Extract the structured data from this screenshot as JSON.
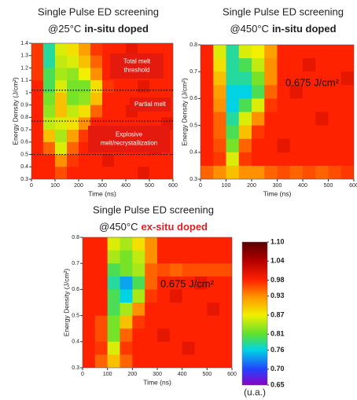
{
  "chart_data": [
    {
      "type": "heatmap",
      "title": "Single Pulse ED screening",
      "subtitle": "@25°C",
      "subtitle_emphasis": "in-situ doped",
      "xlabel": "Time (ns)",
      "ylabel": "Energy Density (J/cm²)",
      "xlim": [
        0,
        600
      ],
      "xticks": [
        0,
        100,
        200,
        300,
        400,
        500,
        600
      ],
      "ylim": [
        0.3,
        1.4
      ],
      "yticks": [
        0.3,
        0.4,
        0.5,
        0.6,
        0.7,
        0.8,
        0.9,
        1,
        1.1,
        1.2,
        1.3,
        1.4
      ],
      "x": [
        25,
        75,
        125,
        175,
        225,
        275,
        325,
        375,
        425,
        475,
        525,
        575
      ],
      "y": [
        1.35,
        1.25,
        1.15,
        1.05,
        0.95,
        0.85,
        0.75,
        0.65,
        0.55,
        0.45,
        0.35
      ],
      "values": [
        [
          0.97,
          0.78,
          0.86,
          0.88,
          0.92,
          0.97,
          0.98,
          0.98,
          1.0,
          0.98,
          0.98,
          0.98
        ],
        [
          0.97,
          0.78,
          0.85,
          0.86,
          0.9,
          0.95,
          0.98,
          0.98,
          0.98,
          0.98,
          1.0,
          0.98
        ],
        [
          0.97,
          0.8,
          0.84,
          0.83,
          0.87,
          0.93,
          0.98,
          0.98,
          0.98,
          0.98,
          0.98,
          0.98
        ],
        [
          0.98,
          0.8,
          0.86,
          0.82,
          0.82,
          0.88,
          0.97,
          0.98,
          0.98,
          1.0,
          0.98,
          0.98
        ],
        [
          0.98,
          0.82,
          0.9,
          0.82,
          0.83,
          0.9,
          0.98,
          0.98,
          0.98,
          0.98,
          0.98,
          0.98
        ],
        [
          0.98,
          0.83,
          0.9,
          0.85,
          0.88,
          0.95,
          0.98,
          0.98,
          1.0,
          0.98,
          0.98,
          0.98
        ],
        [
          0.98,
          0.85,
          0.86,
          0.88,
          0.93,
          0.98,
          0.98,
          0.98,
          0.98,
          0.98,
          0.98,
          1.0
        ],
        [
          0.98,
          0.9,
          0.84,
          0.92,
          0.97,
          0.98,
          0.98,
          1.0,
          0.98,
          0.98,
          0.98,
          0.98
        ],
        [
          0.98,
          0.95,
          0.86,
          0.95,
          0.98,
          0.98,
          0.98,
          0.98,
          0.98,
          0.98,
          1.0,
          0.98
        ],
        [
          0.98,
          0.98,
          0.93,
          0.97,
          0.98,
          0.98,
          1.0,
          0.98,
          0.98,
          0.98,
          0.98,
          0.98
        ],
        [
          0.98,
          0.98,
          0.96,
          0.98,
          0.98,
          0.98,
          0.98,
          0.98,
          0.98,
          1.0,
          0.98,
          0.98
        ]
      ],
      "hlines": [
        1.02,
        0.77,
        0.5
      ],
      "annotations": [
        [
          "Total melt",
          "threshold"
        ],
        [
          "Partial melt"
        ],
        [
          "Explosive",
          "melt/recrystallization"
        ]
      ]
    },
    {
      "type": "heatmap",
      "title": "Single Pulse ED screening",
      "subtitle": "@450°C",
      "subtitle_emphasis": "in-situ doped",
      "xlabel": "Time (ns)",
      "ylabel": "Energy Density (J/cm²)",
      "xlim": [
        0,
        600
      ],
      "xticks": [
        0,
        100,
        200,
        300,
        400,
        500,
        600
      ],
      "ylim": [
        0.3,
        0.8
      ],
      "yticks": [
        0.3,
        0.4,
        0.5,
        0.6,
        0.7,
        0.8
      ],
      "x": [
        25,
        75,
        125,
        175,
        225,
        275,
        325,
        375,
        425,
        475,
        525,
        575
      ],
      "y": [
        0.775,
        0.725,
        0.675,
        0.625,
        0.575,
        0.525,
        0.475,
        0.425,
        0.375,
        0.325
      ],
      "values": [
        [
          0.98,
          0.86,
          0.78,
          0.86,
          0.87,
          0.92,
          0.98,
          0.98,
          0.98,
          0.98,
          0.98,
          0.98
        ],
        [
          0.98,
          0.88,
          0.78,
          0.8,
          0.85,
          0.93,
          0.98,
          0.98,
          1.0,
          0.98,
          0.98,
          0.98
        ],
        [
          0.98,
          0.9,
          0.78,
          0.78,
          0.82,
          0.93,
          0.98,
          0.98,
          0.98,
          0.98,
          0.98,
          1.0
        ],
        [
          0.98,
          0.92,
          0.76,
          0.76,
          0.8,
          0.95,
          0.98,
          1.0,
          0.98,
          0.98,
          0.98,
          0.98
        ],
        [
          0.98,
          0.93,
          0.76,
          0.8,
          0.86,
          0.97,
          0.98,
          0.98,
          0.98,
          0.98,
          0.98,
          0.98
        ],
        [
          0.98,
          0.95,
          0.78,
          0.86,
          0.93,
          0.98,
          0.98,
          0.98,
          0.98,
          1.0,
          0.98,
          0.98
        ],
        [
          0.98,
          0.95,
          0.8,
          0.9,
          0.97,
          0.98,
          0.98,
          0.98,
          0.98,
          0.98,
          0.98,
          0.98
        ],
        [
          0.98,
          0.96,
          0.82,
          0.95,
          0.98,
          0.98,
          1.0,
          0.98,
          0.98,
          0.98,
          0.98,
          0.98
        ],
        [
          0.98,
          0.97,
          0.86,
          0.97,
          0.98,
          0.98,
          0.98,
          0.98,
          0.98,
          0.98,
          0.98,
          0.98
        ],
        [
          0.95,
          0.93,
          0.9,
          0.93,
          0.93,
          0.95,
          0.96,
          0.95,
          0.96,
          0.95,
          0.96,
          0.97
        ]
      ],
      "annotation": "0.675 J/cm²"
    },
    {
      "type": "heatmap",
      "title": "Single Pulse ED screening",
      "subtitle": "@450°C",
      "subtitle_emphasis": "ex-situ doped",
      "xlabel": "Time (ns)",
      "ylabel": "Energy Density (J/cm²)",
      "xlim": [
        0,
        600
      ],
      "xticks": [
        0,
        100,
        200,
        300,
        400,
        500,
        600
      ],
      "ylim": [
        0.3,
        0.8
      ],
      "yticks": [
        0.3,
        0.4,
        0.5,
        0.6,
        0.7,
        0.8
      ],
      "x": [
        25,
        75,
        125,
        175,
        225,
        275,
        325,
        375,
        425,
        475,
        525,
        575
      ],
      "y": [
        0.775,
        0.725,
        0.675,
        0.625,
        0.575,
        0.525,
        0.475,
        0.425,
        0.375,
        0.325
      ],
      "values": [
        [
          0.98,
          0.98,
          0.86,
          0.84,
          0.88,
          0.93,
          0.98,
          0.98,
          0.98,
          0.98,
          0.98,
          0.98
        ],
        [
          0.98,
          0.98,
          0.84,
          0.82,
          0.85,
          0.93,
          0.98,
          0.98,
          0.98,
          0.98,
          0.98,
          0.98
        ],
        [
          0.98,
          0.98,
          0.8,
          0.82,
          0.84,
          0.95,
          0.96,
          0.95,
          0.96,
          0.96,
          0.96,
          0.96
        ],
        [
          0.98,
          0.98,
          0.78,
          0.74,
          0.8,
          0.95,
          0.98,
          0.98,
          0.98,
          1.0,
          0.98,
          0.98
        ],
        [
          0.98,
          0.98,
          0.8,
          0.76,
          0.84,
          0.97,
          0.98,
          1.0,
          0.98,
          0.98,
          0.98,
          0.98
        ],
        [
          0.98,
          0.98,
          0.8,
          0.84,
          0.93,
          0.98,
          0.98,
          0.98,
          0.98,
          0.98,
          1.0,
          0.98
        ],
        [
          0.98,
          0.96,
          0.82,
          0.9,
          0.97,
          0.98,
          0.98,
          0.98,
          0.98,
          0.98,
          0.98,
          0.98
        ],
        [
          0.98,
          0.96,
          0.82,
          0.95,
          0.98,
          0.98,
          1.0,
          0.98,
          0.98,
          0.98,
          0.98,
          0.98
        ],
        [
          0.98,
          0.97,
          0.86,
          0.97,
          0.98,
          0.98,
          0.98,
          0.98,
          1.0,
          0.98,
          0.98,
          0.98
        ],
        [
          0.98,
          0.95,
          0.9,
          0.95,
          0.98,
          0.98,
          0.98,
          0.98,
          0.98,
          0.98,
          0.98,
          0.98
        ]
      ],
      "annotation": "0.675 J/cm²"
    }
  ],
  "colorbar": {
    "label": "(u.a.)",
    "ticks": [
      {
        "value": 1.1,
        "label": "1.10"
      },
      1.04,
      0.98,
      0.93,
      0.87,
      0.81,
      0.76,
      {
        "value": 0.7,
        "label": "0.70"
      },
      0.65
    ],
    "colors": [
      "#5a0000",
      "#b40000",
      "#ff2200",
      "#ff9000",
      "#f2f000",
      "#5ee030",
      "#00d4e4",
      "#2244ff",
      "#8c00c4"
    ]
  }
}
